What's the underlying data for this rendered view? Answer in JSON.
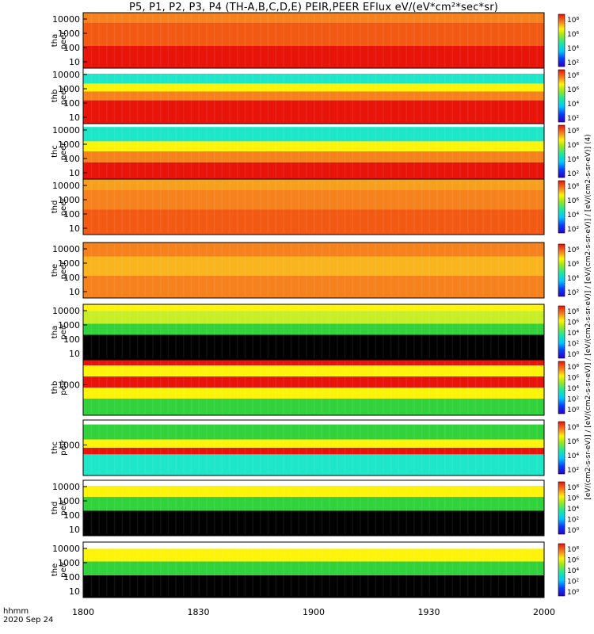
{
  "title": "P5, P1, P2, P3, P4 (TH-A,B,C,D,E) PEIR,PEER EFlux eV/(eV*cm²*sec*sr)",
  "time_axis": {
    "label": "hhmm",
    "date": "2020 Sep 24",
    "ticks": [
      "1800",
      "1830",
      "1900",
      "1930",
      "2000"
    ]
  },
  "colorbar_label": "[eV/(cm2-s-sr-eV)] / [eV/(cm2-s-sr-eV)] / [eV/(cm2-s-sr-eV)] / [eV/(cm2-s-sr-eV)] / [eV/(cm2-s-sr-eV)] (4)",
  "colorbar_ticks": [
    "10⁸",
    "10⁶",
    "10⁴",
    "10²",
    "10⁰"
  ],
  "colorbar_ticks_no_zero": [
    "10⁸",
    "10⁶",
    "10⁴",
    "10²"
  ],
  "colors": {
    "red": "#e8140a",
    "orange": "#f6821e",
    "yellow": "#fdf40a",
    "green": "#32d23c",
    "cyan": "#1ee6c8",
    "blue": "#1e4bd2",
    "black": "#000000"
  },
  "chart_data": {
    "type": "heatmap",
    "x_range": [
      "1800",
      "2000"
    ],
    "panels": [
      {
        "probe": "tha",
        "label": [
          "tha",
          "peer"
        ],
        "y_ticks": [
          "10000",
          "1000",
          "100",
          "10"
        ],
        "cb_ticks": "colorbar_ticks_no_zero"
      },
      {
        "probe": "thb",
        "label": [
          "thb",
          "peer"
        ],
        "y_ticks": [
          "10000",
          "1000",
          "100",
          "10"
        ],
        "cb_ticks": "colorbar_ticks_no_zero"
      },
      {
        "probe": "thc",
        "label": [
          "thc",
          "peer"
        ],
        "y_ticks": [
          "10000",
          "1000",
          "100",
          "10"
        ],
        "cb_ticks": "colorbar_ticks_no_zero"
      },
      {
        "probe": "thd",
        "label": [
          "thd",
          "peer"
        ],
        "y_ticks": [
          "10000",
          "1000",
          "100",
          "10"
        ],
        "cb_ticks": "colorbar_ticks_no_zero"
      },
      {
        "probe": "the",
        "label": [
          "the",
          "peer"
        ],
        "y_ticks": [
          "10000",
          "1000",
          "100",
          "10"
        ],
        "cb_ticks": "colorbar_ticks_no_zero"
      },
      {
        "probe": "tha",
        "label": [
          "tha",
          "peir"
        ],
        "y_ticks": [
          "10000",
          "1000",
          "100",
          "10"
        ],
        "cb_ticks": "colorbar_ticks"
      },
      {
        "probe": "thb",
        "label": [
          "thb",
          "peir"
        ],
        "y_ticks": [
          "1000"
        ],
        "cb_ticks": "colorbar_ticks"
      },
      {
        "probe": "thc",
        "label": [
          "thc",
          "peir"
        ],
        "y_ticks": [
          "1000"
        ],
        "cb_ticks": "colorbar_ticks_no_zero"
      },
      {
        "probe": "thd",
        "label": [
          "thd",
          "peir"
        ],
        "y_ticks": [
          "10000",
          "1000",
          "100",
          "10"
        ],
        "cb_ticks": "colorbar_ticks"
      },
      {
        "probe": "the",
        "label": [
          "the",
          "peir"
        ],
        "y_ticks": [
          "10000",
          "1000",
          "100",
          "10"
        ],
        "cb_ticks": "colorbar_ticks"
      }
    ]
  }
}
